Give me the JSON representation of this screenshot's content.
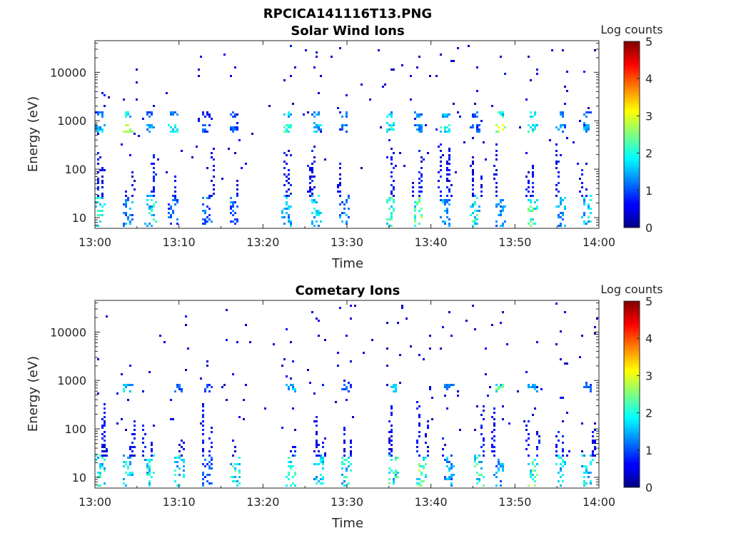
{
  "figure_title": "RPCICA141116T13.PNG",
  "chart_data": [
    {
      "type": "heatmap",
      "title": "Solar Wind Ions",
      "xlabel": "Time",
      "ylabel": "Energy (eV)",
      "x_ticks": [
        "13:00",
        "13:10",
        "13:20",
        "13:30",
        "13:40",
        "13:50",
        "14:00"
      ],
      "x_range_minutes": [
        0,
        60
      ],
      "y_scale": "log",
      "y_ticks": [
        10,
        100,
        1000,
        10000
      ],
      "y_range": [
        6,
        45000
      ],
      "colorbar": {
        "label": "Log counts",
        "range": [
          0,
          5
        ],
        "ticks": [
          0,
          1,
          2,
          3,
          4,
          5
        ],
        "colormap": "jet"
      },
      "grid": false,
      "bursts": [
        {
          "t": 0.5,
          "low": 2.2,
          "sw": [
            1.8,
            1.4
          ],
          "hi": 1
        },
        {
          "t": 3.8,
          "low": 1.6,
          "sw": [
            2.8,
            2.2
          ],
          "hi": 1
        },
        {
          "t": 6.5,
          "low": 2.2,
          "sw": [
            1.6,
            1.4
          ],
          "hi": 0
        },
        {
          "t": 9.2,
          "low": 1.3,
          "sw": [
            2.1,
            1.3
          ],
          "hi": 0
        },
        {
          "t": 13.2,
          "low": 1.3,
          "sw": [
            1.2,
            1.0
          ],
          "hi": 1
        },
        {
          "t": 16.4,
          "low": 1.4,
          "sw": [
            1.2,
            1.1
          ],
          "hi": 1
        },
        {
          "t": 22.8,
          "low": 1.8,
          "sw": [
            2.5,
            2.0
          ],
          "hi": 1
        },
        {
          "t": 26.2,
          "low": 2.0,
          "sw": [
            1.8,
            1.6
          ],
          "hi": 1
        },
        {
          "t": 29.6,
          "low": 1.6,
          "sw": [
            1.5,
            1.4
          ],
          "hi": 1
        },
        {
          "t": 35.0,
          "low": 2.4,
          "sw": [
            2.2,
            1.8
          ],
          "hi": 1
        },
        {
          "t": 38.4,
          "low": 2.7,
          "sw": [
            1.6,
            1.4
          ],
          "hi": 1
        },
        {
          "t": 41.6,
          "low": 1.7,
          "sw": [
            2.3,
            1.8
          ],
          "hi": 1
        },
        {
          "t": 45.2,
          "low": 2.3,
          "sw": [
            1.3,
            1.3
          ],
          "hi": 1
        },
        {
          "t": 48.2,
          "low": 1.6,
          "sw": [
            3.1,
            2.2
          ],
          "hi": 1
        },
        {
          "t": 52.0,
          "low": 2.6,
          "sw": [
            2.3,
            1.9
          ],
          "hi": 1
        },
        {
          "t": 55.4,
          "low": 1.8,
          "sw": [
            1.5,
            1.3
          ],
          "hi": 1
        },
        {
          "t": 58.5,
          "low": 2.0,
          "sw": [
            1.7,
            1.3
          ],
          "hi": 1
        }
      ]
    },
    {
      "type": "heatmap",
      "title": "Cometary Ions",
      "xlabel": "Time",
      "ylabel": "Energy (eV)",
      "x_ticks": [
        "13:00",
        "13:10",
        "13:20",
        "13:30",
        "13:40",
        "13:50",
        "14:00"
      ],
      "x_range_minutes": [
        0,
        60
      ],
      "y_scale": "log",
      "y_ticks": [
        10,
        100,
        1000,
        10000
      ],
      "y_range": [
        6,
        45000
      ],
      "colorbar": {
        "label": "Log counts",
        "range": [
          0,
          5
        ],
        "ticks": [
          0,
          1,
          2,
          3,
          4,
          5
        ],
        "colormap": "jet"
      },
      "grid": false,
      "bursts": [
        {
          "t": 0.5,
          "low": 2.2,
          "sw": [
            0,
            0
          ],
          "hi": 0
        },
        {
          "t": 3.8,
          "low": 2.1,
          "sw": [
            2.0,
            0
          ],
          "hi": 1
        },
        {
          "t": 6.5,
          "low": 2.2,
          "sw": [
            0,
            0
          ],
          "hi": 0
        },
        {
          "t": 10.0,
          "low": 2.2,
          "sw": [
            1.2,
            0
          ],
          "hi": 1
        },
        {
          "t": 13.2,
          "low": 1.3,
          "sw": [
            1.0,
            0
          ],
          "hi": 0
        },
        {
          "t": 16.6,
          "low": 2.3,
          "sw": [
            0,
            0
          ],
          "hi": 1
        },
        {
          "t": 23.2,
          "low": 2.3,
          "sw": [
            1.7,
            0
          ],
          "hi": 1
        },
        {
          "t": 26.6,
          "low": 2.0,
          "sw": [
            0,
            0
          ],
          "hi": 1
        },
        {
          "t": 29.8,
          "low": 2.1,
          "sw": [
            1.2,
            0
          ],
          "hi": 1
        },
        {
          "t": 35.4,
          "low": 2.4,
          "sw": [
            1.9,
            0
          ],
          "hi": 1
        },
        {
          "t": 38.8,
          "low": 2.8,
          "sw": [
            0,
            0
          ],
          "hi": 1
        },
        {
          "t": 42.0,
          "low": 1.7,
          "sw": [
            1.4,
            0
          ],
          "hi": 1
        },
        {
          "t": 45.6,
          "low": 2.3,
          "sw": [
            0,
            0
          ],
          "hi": 1
        },
        {
          "t": 48.0,
          "low": 1.6,
          "sw": [
            2.4,
            0
          ],
          "hi": 1
        },
        {
          "t": 52.0,
          "low": 2.7,
          "sw": [
            1.6,
            0
          ],
          "hi": 1
        },
        {
          "t": 55.4,
          "low": 2.0,
          "sw": [
            0,
            0
          ],
          "hi": 1
        },
        {
          "t": 58.5,
          "low": 2.2,
          "sw": [
            1.2,
            0
          ],
          "hi": 1
        }
      ]
    }
  ]
}
